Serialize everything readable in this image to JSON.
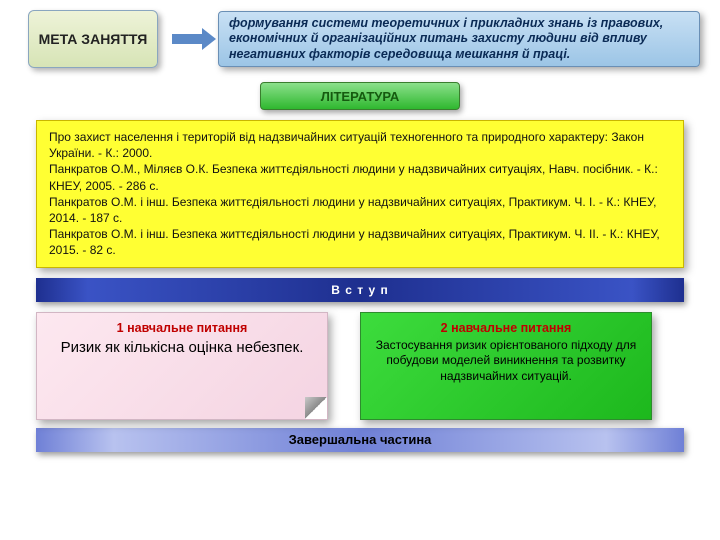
{
  "colors": {
    "meta_bg": "linear-gradient(180deg,#eef3d8,#d7e4b6)",
    "goal_bg": "linear-gradient(180deg,#c8e0f4,#9cc5e6)",
    "lit_btn_bg": "linear-gradient(180deg,#8be08b,#2fb82f)",
    "bar_bg": "linear-gradient(90deg,#1e2f8f 0%,#3a53c5 8%,#1e2f8f 50%,#3a53c5 92%,#1e2f8f 100%)",
    "final_bar_bg": "linear-gradient(90deg,#6f80d6 0%,#b8c2ef 12%,#6f80d6 50%,#b8c2ef 88%,#6f80d6 100%)"
  },
  "meta": {
    "title": "МЕТА ЗАНЯТТЯ"
  },
  "goal": {
    "text": "формування системи теоретичних і прикладних знань із правових, економічних й організаційних питань захисту людини від впливу негативних факторів середовища мешкання й праці."
  },
  "literature": {
    "label": "ЛІТЕРАТУРА",
    "body": "Про захист населення і територій від надзвичайних ситуацій техногенного та природного характеру: Закон України. - К.: 2000.\n Панкратов О.М., Міляєв О.К. Безпека життєдіяльності людини у надзвичайних ситуаціях, Навч. посібник. - К.: КНЕУ, 2005. - 286 с.\nПанкратов О.М. і інш. Безпека життєдіяльності людини у надзвичайних ситуаціях, Практикум. Ч. І. - К.: КНЕУ, 2014. - 187 с.\nПанкратов О.М. і інш. Безпека життєдіяльності людини у надзвичайних ситуаціях, Практикум. Ч. ІІ. - К.: КНЕУ, 2015. - 82 с."
  },
  "intro_bar": "В с т у п",
  "q1": {
    "title": "1 навчальне питання",
    "text": "Ризик як кількісна оцінка небезпек."
  },
  "q2": {
    "title": "2 навчальне питання",
    "text": "Застосування ризик орієнтованого підходу для побудови  моделей виникнення та розвитку надзвичайних ситуацій."
  },
  "final_bar": "Завершальна частина"
}
